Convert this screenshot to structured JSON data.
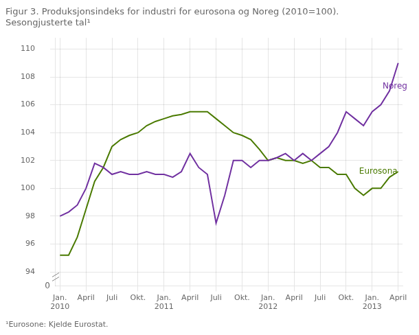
{
  "chart_data": {
    "type": "line",
    "title": "Figur 3. Produksjonsindeks for industri for eurosona og Noreg (2010=100).\nSesongjusterte tal¹",
    "footnote": "¹Eurosone: Kjelde Eurostat.",
    "categories": [
      "Jan.\n2010",
      null,
      null,
      "April",
      null,
      null,
      "Juli",
      null,
      null,
      "Okt.",
      null,
      null,
      "Jan.\n2011",
      null,
      null,
      "April",
      null,
      null,
      "Juli",
      null,
      null,
      "Okt.",
      null,
      null,
      "Jan.\n2012",
      null,
      null,
      "April",
      null,
      null,
      "Juli",
      null,
      null,
      "Okt.",
      null,
      null,
      "Jan.\n2013",
      null,
      null,
      "April"
    ],
    "series": [
      {
        "name": "Noreg",
        "color": "#7030a0",
        "values": [
          98.0,
          98.3,
          98.8,
          100.0,
          101.8,
          101.5,
          101.0,
          101.2,
          101.0,
          101.0,
          101.2,
          101.0,
          101.0,
          100.8,
          101.2,
          102.5,
          101.5,
          101.0,
          97.5,
          99.5,
          102.0,
          102.0,
          101.5,
          102.0,
          102.0,
          102.2,
          102.5,
          102.0,
          102.5,
          102.0,
          102.5,
          103.0,
          104.0,
          105.5,
          105.0,
          104.5,
          105.5,
          106.0,
          107.0,
          109.0
        ]
      },
      {
        "name": "Eurosona",
        "color": "#4a7a00",
        "values": [
          95.2,
          95.2,
          96.5,
          98.5,
          100.5,
          101.5,
          103.0,
          103.5,
          103.8,
          104.0,
          104.5,
          104.8,
          105.0,
          105.2,
          105.3,
          105.5,
          105.5,
          105.5,
          105.0,
          104.5,
          104.0,
          103.8,
          103.5,
          102.8,
          102.0,
          102.2,
          102.0,
          102.0,
          101.8,
          102.0,
          101.5,
          101.5,
          101.0,
          101.0,
          100.0,
          99.5,
          100.0,
          100.0,
          100.8,
          101.2
        ]
      }
    ],
    "annotations": [
      {
        "text": "Noreg",
        "x": 37.2,
        "y": 107.3,
        "color": "#7030a0"
      },
      {
        "text": "Eurosona",
        "x": 34.5,
        "y": 101.2,
        "color": "#4a7a00"
      },
      {
        "text": "0"
      }
    ],
    "ylim": [
      93.0,
      110.8
    ],
    "yticks": [
      94,
      96,
      98,
      100,
      102,
      104,
      106,
      108,
      110
    ],
    "grid": true
  }
}
